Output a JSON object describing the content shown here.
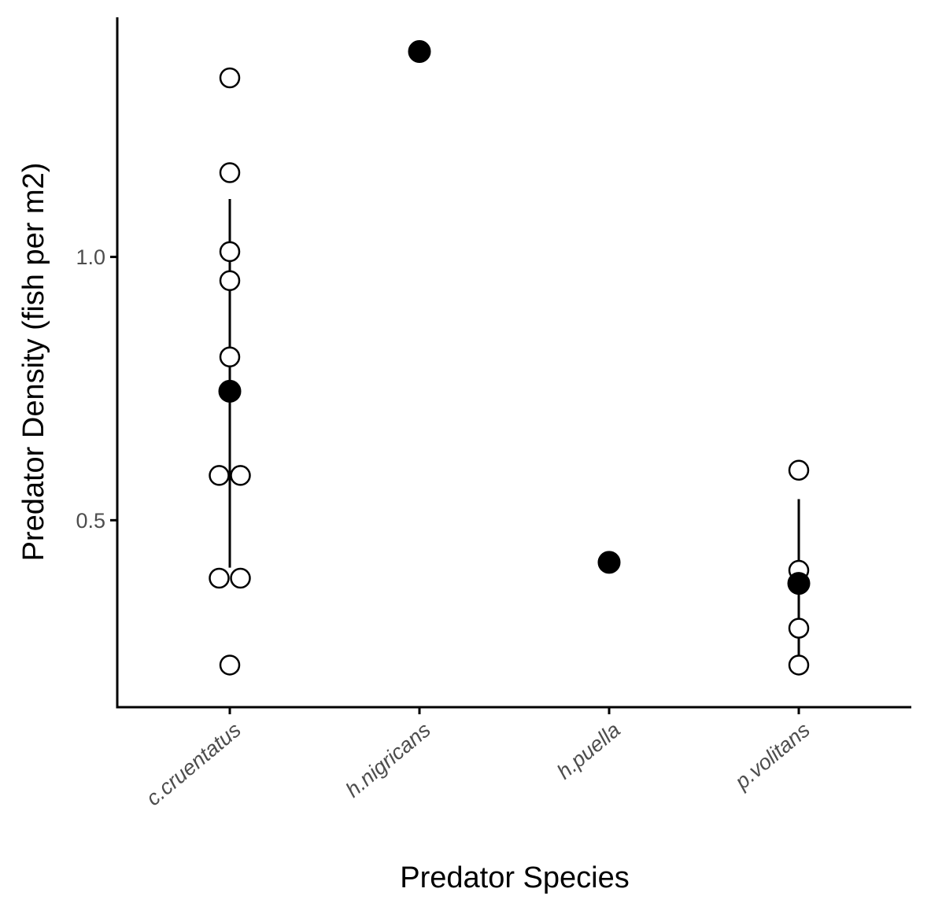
{
  "chart_data": {
    "type": "scatter",
    "title": "",
    "xlabel": "Predator Species",
    "ylabel": "Predator Density (fish per m2)",
    "categories": [
      "c.cruentatus",
      "h.nigricans",
      "h.puella",
      "p.volitans"
    ],
    "ylim": [
      0.145,
      1.455
    ],
    "yticks": [
      0.5,
      1.0
    ],
    "ytick_labels": [
      "0.5",
      "1.0"
    ],
    "grid": false,
    "legend": "none",
    "raw_points": [
      {
        "category": "c.cruentatus",
        "values": [
          1.34,
          1.16,
          1.01,
          0.955,
          0.81,
          0.585,
          0.585,
          0.39,
          0.39,
          0.225
        ]
      },
      {
        "category": "h.nigricans",
        "values": []
      },
      {
        "category": "h.puella",
        "values": []
      },
      {
        "category": "p.volitans",
        "values": [
          0.595,
          0.405,
          0.295,
          0.225
        ]
      }
    ],
    "means": [
      {
        "category": "c.cruentatus",
        "mean": 0.745,
        "low": 0.41,
        "high": 1.11
      },
      {
        "category": "h.nigricans",
        "mean": 1.39,
        "low": null,
        "high": null
      },
      {
        "category": "h.puella",
        "mean": 0.42,
        "low": null,
        "high": null
      },
      {
        "category": "p.volitans",
        "mean": 0.38,
        "low": 0.225,
        "high": 0.54
      }
    ],
    "colors": {
      "axis": "#000000",
      "raw_point_fill": "#ffffff",
      "raw_point_stroke": "#000000",
      "mean_point": "#000000",
      "tick_text": "#4d4d4d"
    }
  }
}
